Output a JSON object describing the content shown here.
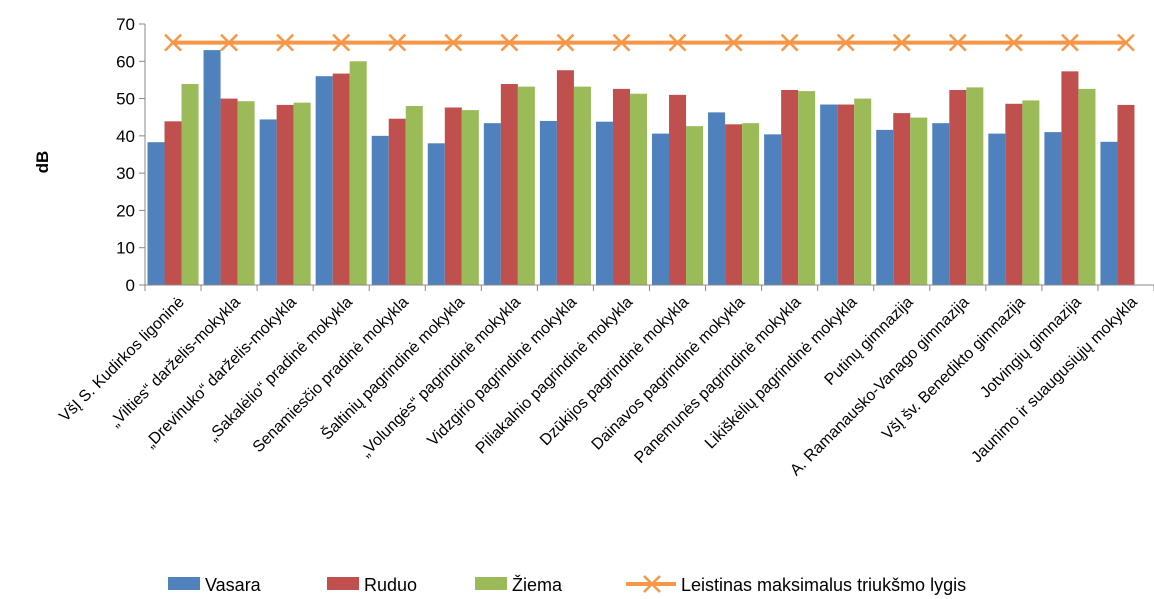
{
  "chart_data": {
    "type": "bar",
    "title": "",
    "xlabel": "",
    "ylabel": "dB",
    "ylim": [
      0,
      70
    ],
    "yticks": [
      0,
      10,
      20,
      30,
      40,
      50,
      60,
      70
    ],
    "grid": false,
    "legend_position": "bottom",
    "categories": [
      "VšĮ S. Kudirkos ligoninė",
      "„Vilties“ darželis-mokykla",
      "„Drevinuko“ darželis-mokykla",
      "„Sakalėlio“ pradinė mokykla",
      "Senamiesčio pradinė mokykla",
      "Šaltinių pagrindinė mokykla",
      "„Volungės“  pagrindinė mokykla",
      "Vidzgirio pagrindinė mokykla",
      "Piliakalnio pagrindinė mokykla",
      "Dzūkijos pagrindinė mokykla",
      "Dainavos pagrindinė mokykla",
      "Panemunės pagrindinė mokykla",
      "Likiškėlių pagrindinė mokykla",
      "Putinų gimnazija",
      "A. Ramanausko-Vanago gimnazija",
      "VšĮ šv. Benedikto gimnazija",
      "Jotvingių gimnazija",
      "Jaunimo ir suaugusiųjų mokykla"
    ],
    "series": [
      {
        "name": "Vasara",
        "color": "#4F81BD",
        "values": [
          38.3,
          63.0,
          44.4,
          56.0,
          40.0,
          38.0,
          43.4,
          44.0,
          43.8,
          40.6,
          46.3,
          40.4,
          48.4,
          41.6,
          43.4,
          40.6,
          41.0,
          38.4
        ]
      },
      {
        "name": "Ruduo",
        "color": "#C0504D",
        "values": [
          43.9,
          50.0,
          48.3,
          56.7,
          44.6,
          47.6,
          53.9,
          57.6,
          52.6,
          51.0,
          43.1,
          52.3,
          48.4,
          46.1,
          52.3,
          48.6,
          57.3,
          48.3
        ]
      },
      {
        "name": "Žiema",
        "color": "#9BBB59",
        "values": [
          53.9,
          49.3,
          48.9,
          60.0,
          48.0,
          46.9,
          53.2,
          53.2,
          51.3,
          42.6,
          43.4,
          52.0,
          50.0,
          44.9,
          53.0,
          49.5,
          52.6,
          null
        ]
      }
    ],
    "threshold": {
      "name": "Leistinas maksimalus  triukšmo lygis",
      "value": 65,
      "color": "#F79646"
    }
  }
}
